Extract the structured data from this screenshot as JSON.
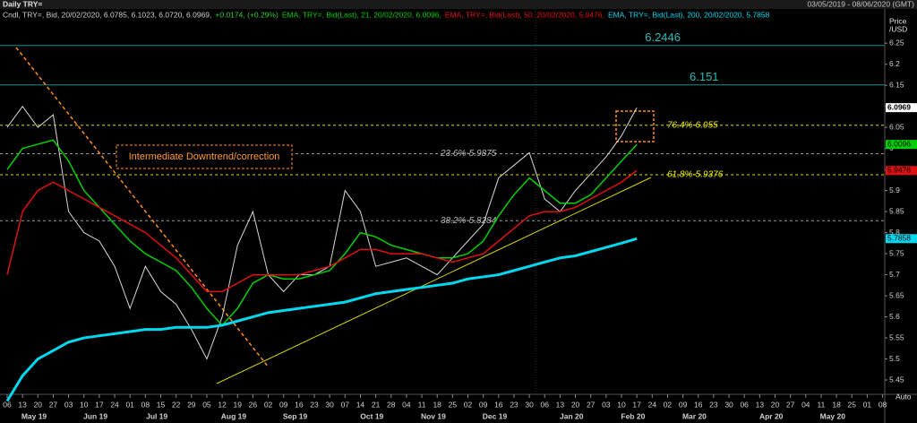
{
  "header": {
    "title": "Daily TRY=",
    "range": "03/05/2019 - 08/06/2020 (GMT)"
  },
  "chart_data": {
    "type": "line",
    "ylabel_lines": [
      "Price",
      "/USD"
    ],
    "scale_mode": "Auto",
    "categories": [
      "06",
      "13",
      "20",
      "27",
      "03",
      "10",
      "17",
      "24",
      "01",
      "08",
      "15",
      "22",
      "29",
      "05",
      "12",
      "19",
      "26",
      "02",
      "09",
      "16",
      "23",
      "30",
      "07",
      "14",
      "21",
      "28",
      "04",
      "11",
      "18",
      "25",
      "02",
      "09",
      "16",
      "23",
      "30",
      "06",
      "13",
      "20",
      "27",
      "03",
      "10",
      "17",
      "24",
      "02",
      "09",
      "16",
      "23",
      "30",
      "06",
      "13",
      "20",
      "27",
      "04",
      "11",
      "18",
      "25",
      "01",
      "08"
    ],
    "months": [
      "May 19",
      "Jun 19",
      "Jul 19",
      "Aug 19",
      "Sep 19",
      "Oct 19",
      "Nov 19",
      "Dec 19",
      "Jan 20",
      "Feb 20",
      "Mar 20",
      "Apr 20",
      "May 20"
    ],
    "series": [
      {
        "name": "Cndl, TRY=, Bid, 20/02/2020, 6.0785, 6.1023, 6.0720, 6.0969,",
        "change": "+0.0174, (+0.29%)",
        "color": "#d8d8d8",
        "values": [
          6.05,
          6.1,
          6.05,
          6.08,
          5.85,
          5.8,
          5.78,
          5.72,
          5.62,
          5.72,
          5.66,
          5.63,
          5.57,
          5.5,
          5.6,
          5.77,
          5.85,
          5.7,
          5.66,
          5.7,
          5.7,
          5.72,
          5.9,
          5.85,
          5.72,
          5.73,
          5.74,
          5.72,
          5.7,
          5.74,
          5.78,
          5.82,
          5.93,
          5.96,
          5.99,
          5.88,
          5.85,
          5.9,
          5.94,
          5.98,
          6.03,
          6.0969,
          null,
          null,
          null,
          null,
          null,
          null,
          null,
          null,
          null,
          null,
          null,
          null,
          null,
          null,
          null,
          null
        ]
      },
      {
        "name": "EMA, TRY=, Bid(Last), 21, 20/02/2020, 6.0096,",
        "color": "#00d000",
        "values": [
          5.95,
          6.0,
          6.01,
          6.02,
          5.97,
          5.9,
          5.86,
          5.82,
          5.78,
          5.75,
          5.73,
          5.71,
          5.67,
          5.62,
          5.58,
          5.62,
          5.68,
          5.7,
          5.69,
          5.69,
          5.7,
          5.71,
          5.75,
          5.8,
          5.79,
          5.77,
          5.76,
          5.75,
          5.74,
          5.74,
          5.75,
          5.78,
          5.84,
          5.89,
          5.93,
          5.9,
          5.87,
          5.87,
          5.89,
          5.93,
          5.97,
          6.0096,
          null,
          null,
          null,
          null,
          null,
          null,
          null,
          null,
          null,
          null,
          null,
          null,
          null,
          null,
          null,
          null
        ]
      },
      {
        "name": "EMA, TRY=, Bid(Last), 50, 20/02/2020, 5.9476,",
        "color": "#e01010",
        "values": [
          5.7,
          5.85,
          5.9,
          5.92,
          5.9,
          5.88,
          5.86,
          5.84,
          5.82,
          5.8,
          5.77,
          5.74,
          5.7,
          5.66,
          5.66,
          5.68,
          5.7,
          5.7,
          5.7,
          5.7,
          5.71,
          5.72,
          5.74,
          5.76,
          5.76,
          5.75,
          5.75,
          5.75,
          5.74,
          5.73,
          5.74,
          5.75,
          5.78,
          5.81,
          5.84,
          5.85,
          5.85,
          5.86,
          5.88,
          5.9,
          5.92,
          5.9476,
          null,
          null,
          null,
          null,
          null,
          null,
          null,
          null,
          null,
          null,
          null,
          null,
          null,
          null,
          null,
          null
        ]
      },
      {
        "name": "EMA, TRY=, Bid(Last), 200, 20/02/2020, 5.7858",
        "color": "#00d8f0",
        "values": [
          5.4,
          5.46,
          5.5,
          5.52,
          5.54,
          5.55,
          5.555,
          5.56,
          5.565,
          5.57,
          5.57,
          5.575,
          5.575,
          5.575,
          5.58,
          5.59,
          5.6,
          5.61,
          5.615,
          5.62,
          5.625,
          5.63,
          5.635,
          5.645,
          5.655,
          5.66,
          5.665,
          5.67,
          5.675,
          5.68,
          5.69,
          5.695,
          5.7,
          5.71,
          5.72,
          5.73,
          5.74,
          5.745,
          5.755,
          5.765,
          5.775,
          5.7858,
          null,
          null,
          null,
          null,
          null,
          null,
          null,
          null,
          null,
          null,
          null,
          null,
          null,
          null,
          null,
          null
        ]
      }
    ],
    "levels": [
      {
        "value": 6.2446,
        "label": "6.2446"
      },
      {
        "value": 6.151,
        "label": "6.151"
      },
      {
        "value": 6.055,
        "label": "76.4%-6.055"
      },
      {
        "value": 5.9875,
        "label": "23.6%-5.9875"
      },
      {
        "value": 5.9376,
        "label": "61.8%-5.9376"
      },
      {
        "value": 5.8284,
        "label": "38.2%-5.8284"
      }
    ],
    "annotation": "Intermediate Downtrend/correction",
    "ylim": [
      5.416,
      6.293
    ],
    "yticks": [
      6.25,
      6.2,
      6.15,
      6.1,
      6.05,
      6,
      5.95,
      5.9,
      5.85,
      5.8,
      5.75,
      5.7,
      5.65,
      5.6,
      5.55,
      5.5,
      5.45
    ]
  }
}
